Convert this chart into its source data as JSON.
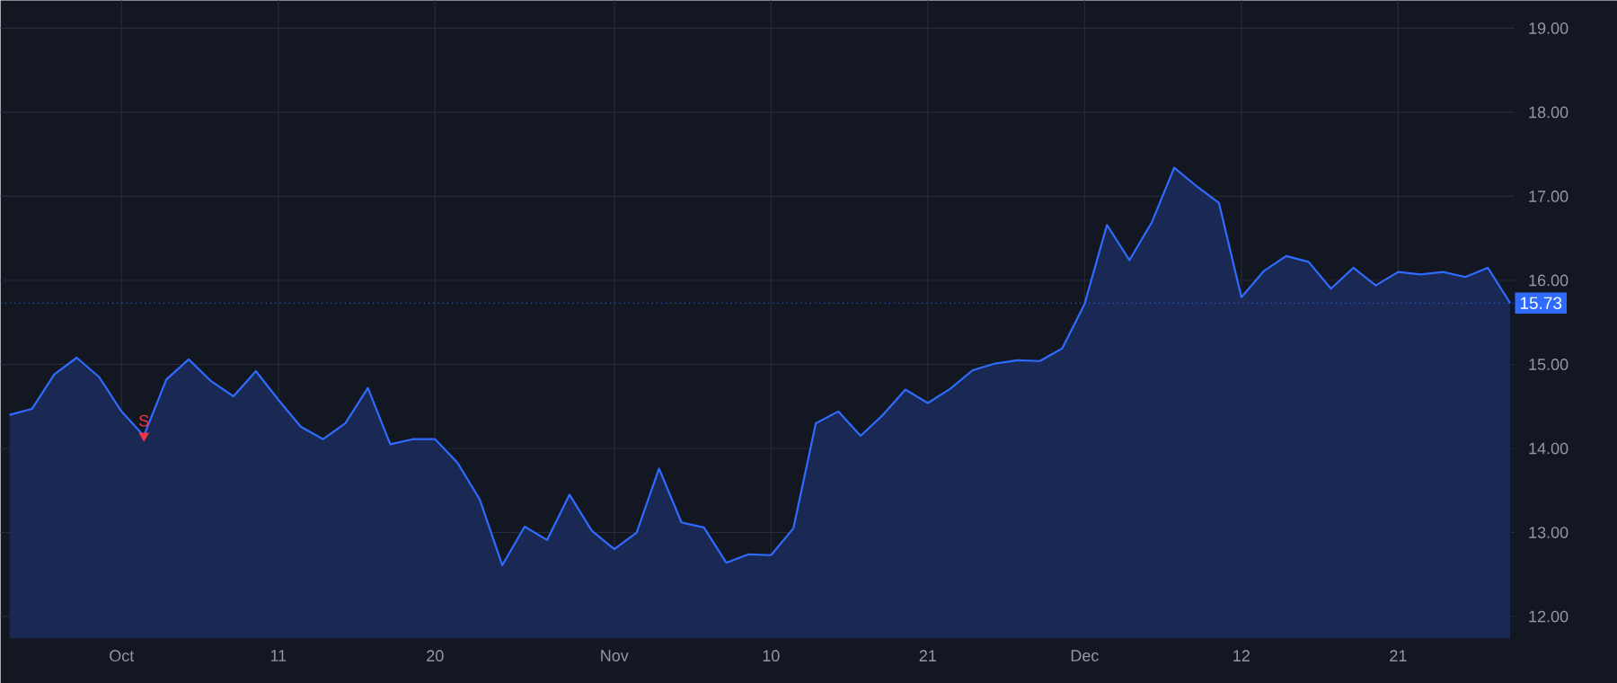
{
  "chart_data": {
    "type": "area",
    "categories": [
      null,
      null,
      null,
      null,
      null,
      "Oct",
      null,
      null,
      null,
      null,
      null,
      null,
      "11",
      null,
      null,
      null,
      null,
      null,
      null,
      "20",
      null,
      null,
      null,
      null,
      null,
      null,
      null,
      "Nov",
      null,
      null,
      null,
      null,
      null,
      null,
      "10",
      null,
      null,
      null,
      null,
      null,
      null,
      "21",
      null,
      null,
      null,
      null,
      null,
      null,
      "Dec",
      null,
      null,
      null,
      null,
      null,
      null,
      "12",
      null,
      null,
      null,
      null,
      null,
      null,
      "21",
      null,
      null,
      null,
      null,
      null
    ],
    "series": [
      {
        "color": "#2f6bff",
        "values": [
          14.4,
          14.47,
          14.88,
          15.08,
          14.85,
          14.44,
          14.15,
          14.82,
          15.06,
          14.8,
          14.62,
          14.92,
          14.58,
          14.26,
          14.11,
          14.3,
          14.72,
          14.05,
          14.11,
          14.11,
          13.83,
          13.39,
          12.61,
          13.07,
          12.91,
          13.45,
          13.02,
          12.8,
          13.0,
          13.76,
          13.12,
          13.06,
          12.64,
          12.74,
          12.73,
          13.05,
          14.3,
          14.44,
          14.15,
          14.4,
          14.7,
          14.54,
          14.71,
          14.93,
          15.01,
          15.05,
          15.04,
          15.19,
          15.72,
          16.66,
          16.24,
          16.69,
          17.34,
          17.12,
          16.92,
          15.8,
          16.11,
          16.29,
          16.22,
          15.9,
          16.15,
          15.94,
          16.1,
          16.07,
          16.1,
          16.04,
          16.15,
          15.73
        ]
      },
      {
        "type": "scatter",
        "name": "S",
        "color": "#f23645",
        "marker": "triangle",
        "values": [
          null,
          null,
          null,
          null,
          null,
          null,
          14.15,
          null,
          null,
          null,
          null,
          null,
          null,
          null,
          null,
          null,
          null,
          null,
          null,
          null,
          null,
          null,
          null,
          null,
          null,
          null,
          null,
          null,
          null,
          null,
          null,
          null,
          null,
          null,
          null,
          null,
          null,
          null,
          null,
          null,
          null,
          null,
          null,
          null,
          null,
          null,
          null,
          null,
          null,
          null,
          null,
          null,
          null,
          null,
          null,
          null,
          null,
          null,
          null,
          null,
          null,
          null,
          null,
          null,
          null,
          null,
          null,
          null
        ]
      }
    ],
    "ylim": [
      11.74,
      19.33
    ],
    "yticks": [
      {
        "value": 12,
        "label": "12.00"
      },
      {
        "value": 13,
        "label": "13.00"
      },
      {
        "value": 14,
        "label": "14.00"
      },
      {
        "value": 15,
        "label": "15.00"
      },
      {
        "value": 16,
        "label": "16.00"
      },
      {
        "value": 17,
        "label": "17.00"
      },
      {
        "value": 18,
        "label": "18.00"
      },
      {
        "value": 19,
        "label": "19.00"
      }
    ],
    "grid": true,
    "ref_lines": [
      {
        "axis": "y",
        "value": 15.73,
        "label": "15.73",
        "color": "#2f6bff",
        "line_style": "dotted"
      }
    ]
  }
}
